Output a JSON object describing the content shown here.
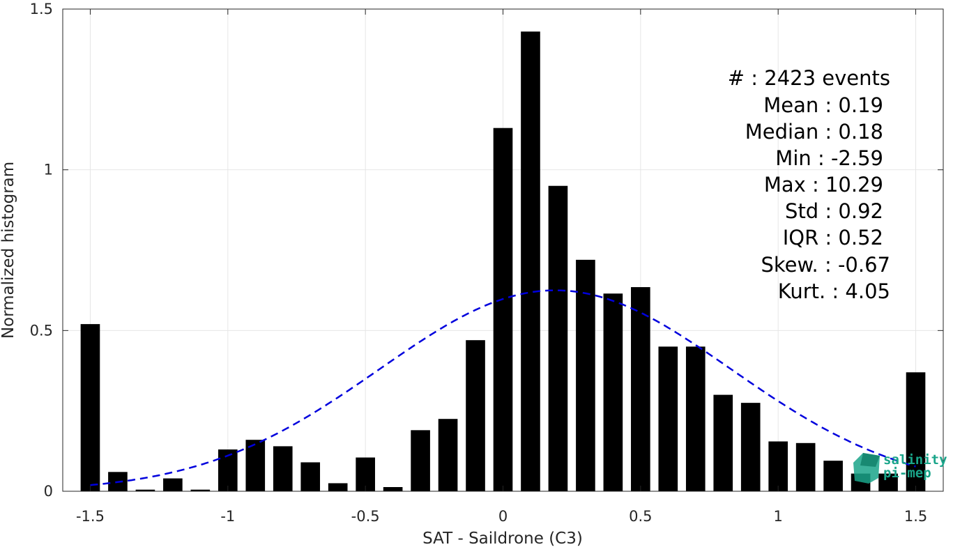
{
  "chart_data": {
    "type": "bar",
    "xlabel": "SAT - Saildrone (C3)",
    "ylabel": "Normalized histogram",
    "xlim": [
      -1.6,
      1.6
    ],
    "ylim": [
      0,
      1.5
    ],
    "x_ticks": [
      -1.5,
      -1,
      -0.5,
      0,
      0.5,
      1,
      1.5
    ],
    "x_tick_labels": [
      "-1.5",
      "-1",
      "-0.5",
      "0",
      "0.5",
      "1",
      "1.5"
    ],
    "y_ticks": [
      0,
      0.5,
      1,
      1.5
    ],
    "y_tick_labels": [
      "0",
      "0.5",
      "1",
      "1.5"
    ],
    "grid": true,
    "bar_color": "#000000",
    "bin_width": 0.1,
    "bin_centers": [
      -1.5,
      -1.4,
      -1.3,
      -1.2,
      -1.1,
      -1.0,
      -0.9,
      -0.8,
      -0.7,
      -0.6,
      -0.5,
      -0.4,
      -0.3,
      -0.2,
      -0.1,
      0.0,
      0.1,
      0.2,
      0.3,
      0.4,
      0.5,
      0.6,
      0.7,
      0.8,
      0.9,
      1.0,
      1.1,
      1.2,
      1.3,
      1.4,
      1.5
    ],
    "values": [
      0.52,
      0.06,
      0.005,
      0.04,
      0.005,
      0.13,
      0.16,
      0.14,
      0.09,
      0.025,
      0.105,
      0.013,
      0.19,
      0.225,
      0.47,
      1.13,
      1.43,
      0.95,
      0.72,
      0.615,
      0.635,
      0.45,
      0.45,
      0.3,
      0.275,
      0.155,
      0.15,
      0.095,
      0.055,
      0.055,
      0.37
    ],
    "fit_curve": {
      "type": "gaussian",
      "mean": 0.19,
      "std": 0.64,
      "peak": 0.625,
      "color": "#0000dd",
      "style": "dashed",
      "x_range": [
        -1.5,
        1.5
      ]
    },
    "stats_lines": [
      "#  : 2423 events",
      "Mean : 0.19",
      "Median : 0.18",
      "Min : -2.59",
      "Max : 10.29",
      "Std : 0.92",
      "IQR : 0.52",
      "Skew. : -0.67",
      "Kurt. : 4.05"
    ]
  },
  "logo": {
    "line1": "salinity",
    "line2": "pi-mep",
    "color": "#1aa58a"
  }
}
